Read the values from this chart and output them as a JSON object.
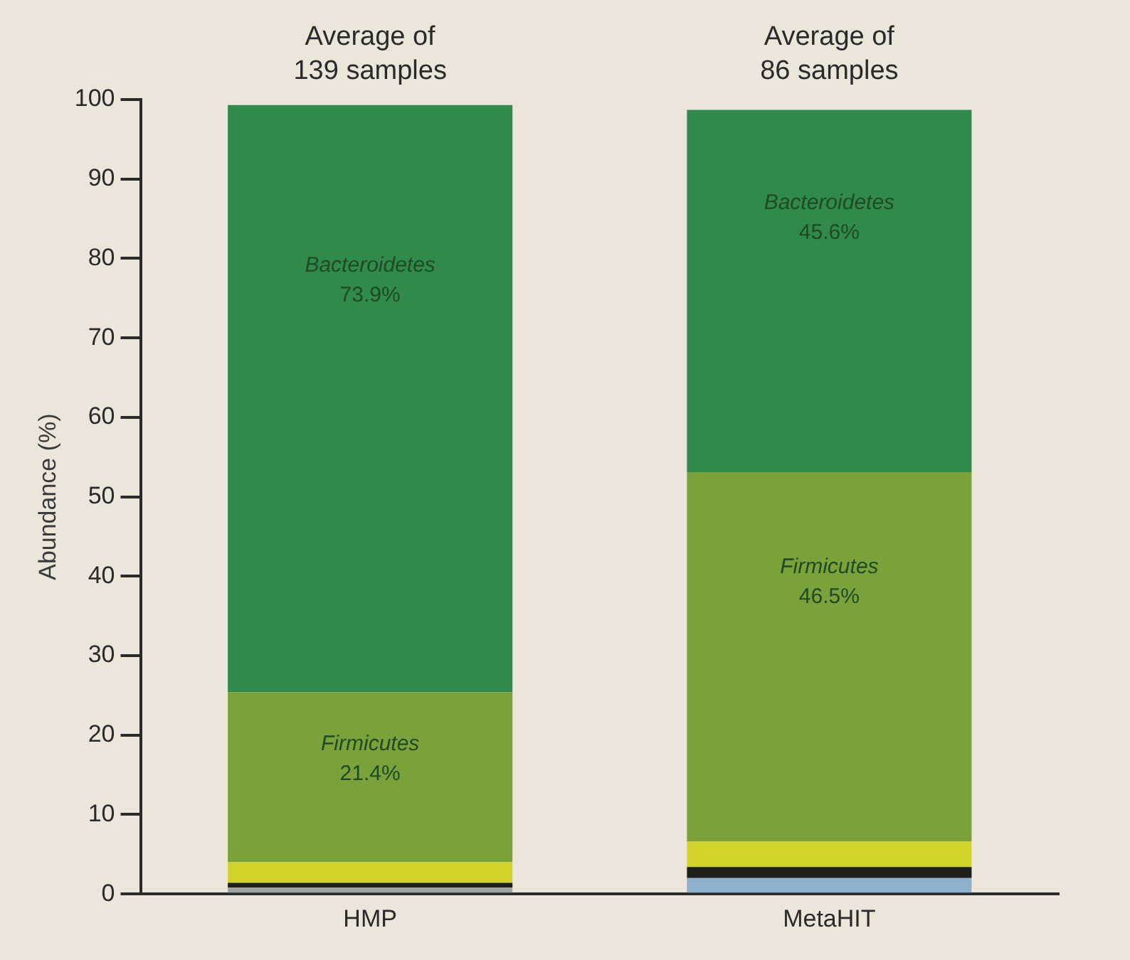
{
  "chart_data": {
    "type": "bar",
    "stacked": true,
    "ylabel": "Abundance (%)",
    "categories": [
      "HMP",
      "MetaHIT"
    ],
    "ylim": [
      0,
      100
    ],
    "yticks": [
      0,
      10,
      20,
      30,
      40,
      50,
      60,
      70,
      80,
      90,
      100
    ],
    "grid": false,
    "legend": false,
    "annotations": [
      "Average of 139 samples",
      "Average of 86 samples"
    ],
    "series": [
      {
        "colors": [
          "#9ea3a3",
          "#8fb0cc"
        ],
        "values": [
          0.8,
          2.0
        ]
      },
      {
        "color": "#1e1e1a",
        "values": [
          0.6,
          1.4
        ]
      },
      {
        "color": "#d2d32a",
        "values": [
          2.6,
          3.2
        ]
      },
      {
        "name": "Firmicutes",
        "color": "#7ba23a",
        "values": [
          21.4,
          46.5
        ],
        "value_labels": [
          "21.4%",
          "46.5%"
        ]
      },
      {
        "name": "Bacteroidetes",
        "color": "#2f8a4c",
        "values": [
          73.9,
          45.6
        ],
        "value_labels": [
          "73.9%",
          "45.6%"
        ]
      }
    ]
  }
}
